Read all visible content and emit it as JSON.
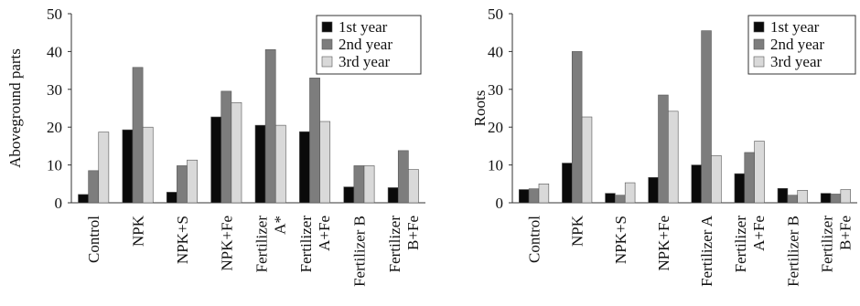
{
  "chart_data": [
    {
      "type": "bar",
      "ylabel": "Aboveground parts",
      "xlabel": "",
      "ylim": [
        0,
        50
      ],
      "yticks": [
        0,
        10,
        20,
        30,
        40,
        50
      ],
      "grid": false,
      "legend_position": "top-right",
      "categories": [
        "Control",
        "NPK",
        "NPK+S",
        "NPK+Fe",
        [
          "Fertilizer",
          "A*"
        ],
        [
          "Fertilizer",
          "A+Fe"
        ],
        "Fertilizer B",
        [
          "Fertilizer",
          "B+Fe"
        ]
      ],
      "series": [
        {
          "name": "1st year",
          "color": "#0a0a0a",
          "values": [
            2.2,
            19.3,
            2.8,
            22.7,
            20.5,
            18.8,
            4.2,
            4.0
          ]
        },
        {
          "name": "2nd year",
          "color": "#7d7d7d",
          "values": [
            8.5,
            35.8,
            9.8,
            29.5,
            40.5,
            33.0,
            9.8,
            13.8
          ]
        },
        {
          "name": "3rd year",
          "color": "#d9d9d9",
          "values": [
            18.7,
            20.0,
            11.3,
            26.5,
            20.5,
            21.5,
            9.8,
            8.8
          ]
        }
      ]
    },
    {
      "type": "bar",
      "ylabel": "Roots",
      "xlabel": "",
      "ylim": [
        0,
        50
      ],
      "yticks": [
        0,
        10,
        20,
        30,
        40,
        50
      ],
      "grid": false,
      "legend_position": "top-right",
      "categories": [
        "Control",
        "NPK",
        "NPK+S",
        "NPK+Fe",
        "Fertilizer A",
        [
          "Fertilizer",
          "A+Fe"
        ],
        "Fertilizer B",
        [
          "Fertilizer",
          "B+Fe"
        ]
      ],
      "series": [
        {
          "name": "1st year",
          "color": "#0a0a0a",
          "values": [
            3.5,
            10.5,
            2.5,
            6.7,
            10.0,
            7.7,
            3.8,
            2.5
          ]
        },
        {
          "name": "2nd year",
          "color": "#7d7d7d",
          "values": [
            3.7,
            40.0,
            2.0,
            28.5,
            45.5,
            13.3,
            2.0,
            2.3
          ]
        },
        {
          "name": "3rd year",
          "color": "#d9d9d9",
          "values": [
            5.0,
            22.7,
            5.3,
            24.2,
            12.5,
            16.3,
            3.3,
            3.5
          ]
        }
      ]
    }
  ]
}
